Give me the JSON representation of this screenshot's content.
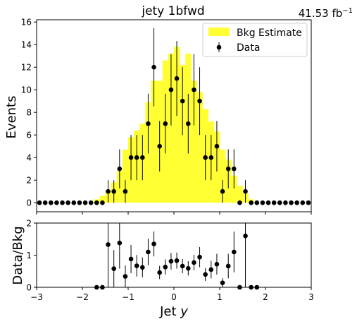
{
  "chart_data": {
    "type": "bar",
    "title": "jety  1bfwd",
    "lumi": {
      "value": "41.53 fb",
      "exponent": "−1"
    },
    "xlabel": {
      "prefix": "Jet ",
      "var": "y"
    },
    "ylabel": "Events",
    "ratio_ylabel": "Data/Bkg",
    "xlim": [
      -3,
      3
    ],
    "ylim": [
      -0.8,
      16.2
    ],
    "ratio_ylim": [
      0,
      2
    ],
    "x_ticks": [
      -3,
      -2,
      -1,
      0,
      1,
      2,
      3
    ],
    "y_ticks": [
      0,
      2,
      4,
      6,
      8,
      10,
      12,
      14,
      16
    ],
    "ratio_ticks": [
      0,
      1,
      2
    ],
    "legend": {
      "position": "top-right",
      "bkg_label": "Bkg Estimate",
      "data_label": "Data"
    },
    "colors": {
      "bkg": "#ffff33",
      "data": "#000000"
    },
    "bin_edges": [
      -3.0,
      -2.875,
      -2.75,
      -2.625,
      -2.5,
      -2.375,
      -2.25,
      -2.125,
      -2.0,
      -1.875,
      -1.75,
      -1.625,
      -1.5,
      -1.375,
      -1.25,
      -1.125,
      -1.0,
      -0.875,
      -0.75,
      -0.625,
      -0.5,
      -0.375,
      -0.25,
      -0.125,
      0.0,
      0.125,
      0.25,
      0.375,
      0.5,
      0.625,
      0.75,
      0.875,
      1.0,
      1.125,
      1.25,
      1.375,
      1.5,
      1.625,
      1.75,
      1.875,
      2.0,
      2.125,
      2.25,
      2.375,
      2.5,
      2.625,
      2.75,
      2.875,
      3.0
    ],
    "bkg_values": [
      0,
      0,
      0,
      0,
      0,
      0,
      0,
      0,
      0,
      0,
      0.3,
      0.6,
      1.0,
      1.8,
      2.8,
      4.7,
      5.8,
      6.4,
      7.0,
      8.9,
      10.8,
      10.8,
      12.6,
      13.2,
      13.8,
      12.2,
      13.2,
      10.8,
      9.8,
      8.3,
      7.2,
      6.3,
      4.7,
      3.8,
      2.4,
      1.5,
      0.8,
      0.3,
      0,
      0,
      0,
      0,
      0,
      0,
      0,
      0,
      0,
      0
    ],
    "data_values": [
      0,
      0,
      0,
      0,
      0,
      0,
      0,
      0,
      0,
      0,
      0,
      0,
      1,
      1,
      3,
      1,
      4,
      4,
      4,
      7,
      12,
      5,
      7,
      10,
      11,
      9,
      7,
      10,
      9,
      4,
      4,
      5,
      1,
      3,
      3,
      0,
      1,
      0,
      0,
      0,
      0,
      0,
      0,
      0,
      0,
      0,
      0,
      0
    ],
    "ratio_values": [
      null,
      null,
      null,
      null,
      null,
      null,
      null,
      null,
      null,
      null,
      0,
      0,
      1.33,
      0.58,
      1.38,
      0.34,
      0.88,
      0.67,
      0.62,
      1.1,
      1.35,
      0.46,
      0.63,
      0.81,
      0.83,
      0.66,
      0.59,
      0.77,
      0.94,
      0.4,
      0.55,
      0.72,
      0.14,
      0.66,
      1.1,
      0,
      1.6,
      0,
      0,
      null,
      null,
      null,
      null,
      null,
      null,
      null,
      null,
      null
    ]
  }
}
